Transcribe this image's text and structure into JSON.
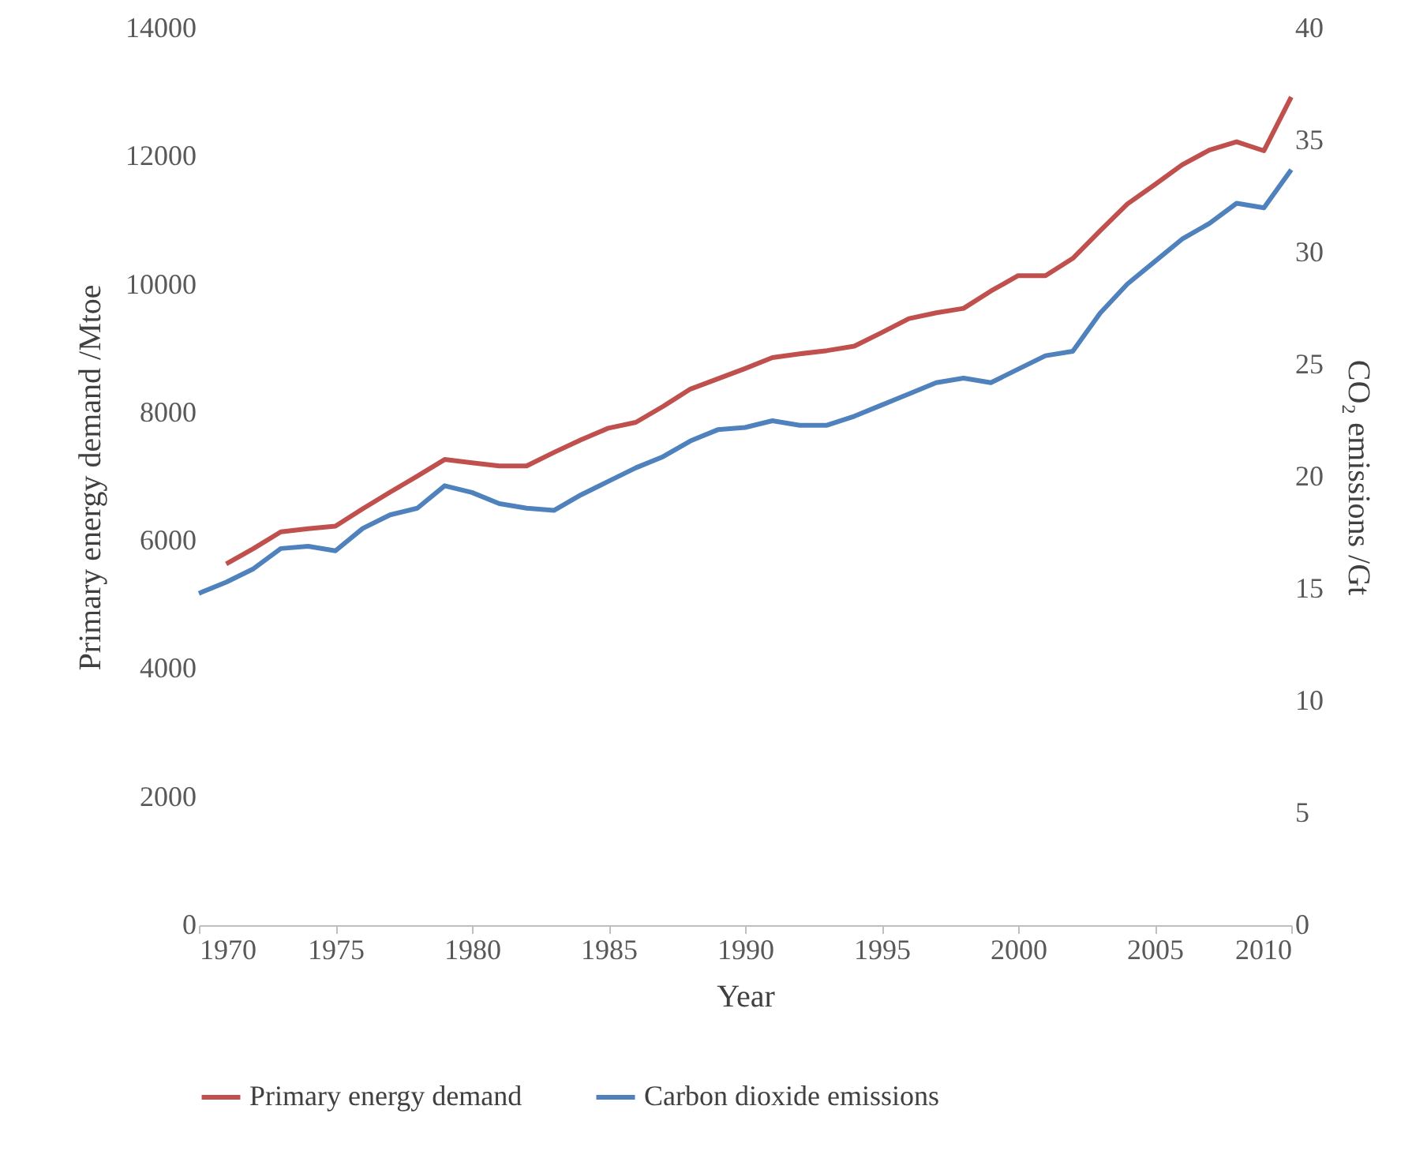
{
  "chart_data": {
    "type": "line",
    "xlabel": "Year",
    "ylabel": "Primary energy demand /Mtoe",
    "y2label": "CO₂ emissions /Gt",
    "x": [
      1970,
      1971,
      1972,
      1973,
      1974,
      1975,
      1976,
      1977,
      1978,
      1979,
      1980,
      1981,
      1982,
      1983,
      1984,
      1985,
      1986,
      1987,
      1988,
      1989,
      1990,
      1991,
      1992,
      1993,
      1994,
      1995,
      1996,
      1997,
      1998,
      1999,
      2000,
      2001,
      2002,
      2003,
      2004,
      2005,
      2006,
      2007,
      2008,
      2009,
      2010
    ],
    "series": [
      {
        "name": "Primary energy demand",
        "color": "#c0504d",
        "values": [
          null,
          5640,
          5880,
          6140,
          6190,
          6230,
          6500,
          6760,
          7010,
          7270,
          7220,
          7170,
          7170,
          7380,
          7580,
          7760,
          7850,
          8100,
          8370,
          8530,
          8690,
          8860,
          8920,
          8970,
          9040,
          9250,
          9470,
          9560,
          9630,
          9900,
          10140,
          10140,
          10410,
          10840,
          11260,
          11560,
          11870,
          12100,
          12230,
          12090,
          12930
        ]
      },
      {
        "name": "Carbon dioxide emissions",
        "color": "#4f81bd",
        "axis": "y2",
        "values": [
          14.8,
          15.3,
          15.9,
          16.8,
          16.9,
          16.7,
          17.7,
          18.3,
          18.6,
          19.6,
          19.3,
          18.8,
          18.6,
          18.5,
          19.2,
          19.8,
          20.4,
          20.9,
          21.6,
          22.1,
          22.2,
          22.5,
          22.3,
          22.3,
          22.7,
          23.2,
          23.7,
          24.2,
          24.4,
          24.2,
          24.8,
          25.4,
          25.6,
          27.3,
          28.6,
          29.6,
          30.6,
          31.3,
          32.2,
          32.0,
          33.7
        ]
      }
    ],
    "xlim": [
      1970,
      2010
    ],
    "xticks": [
      1970,
      1975,
      1980,
      1985,
      1990,
      1995,
      2000,
      2005,
      2010
    ],
    "ylim": [
      0,
      14000
    ],
    "yticks": [
      0,
      2000,
      4000,
      6000,
      8000,
      10000,
      12000,
      14000
    ],
    "y2lim": [
      0,
      40
    ],
    "y2ticks": [
      0,
      5,
      10,
      15,
      20,
      25,
      30,
      35,
      40
    ],
    "grid": false,
    "legend": "bottom",
    "line_style": "solid"
  }
}
